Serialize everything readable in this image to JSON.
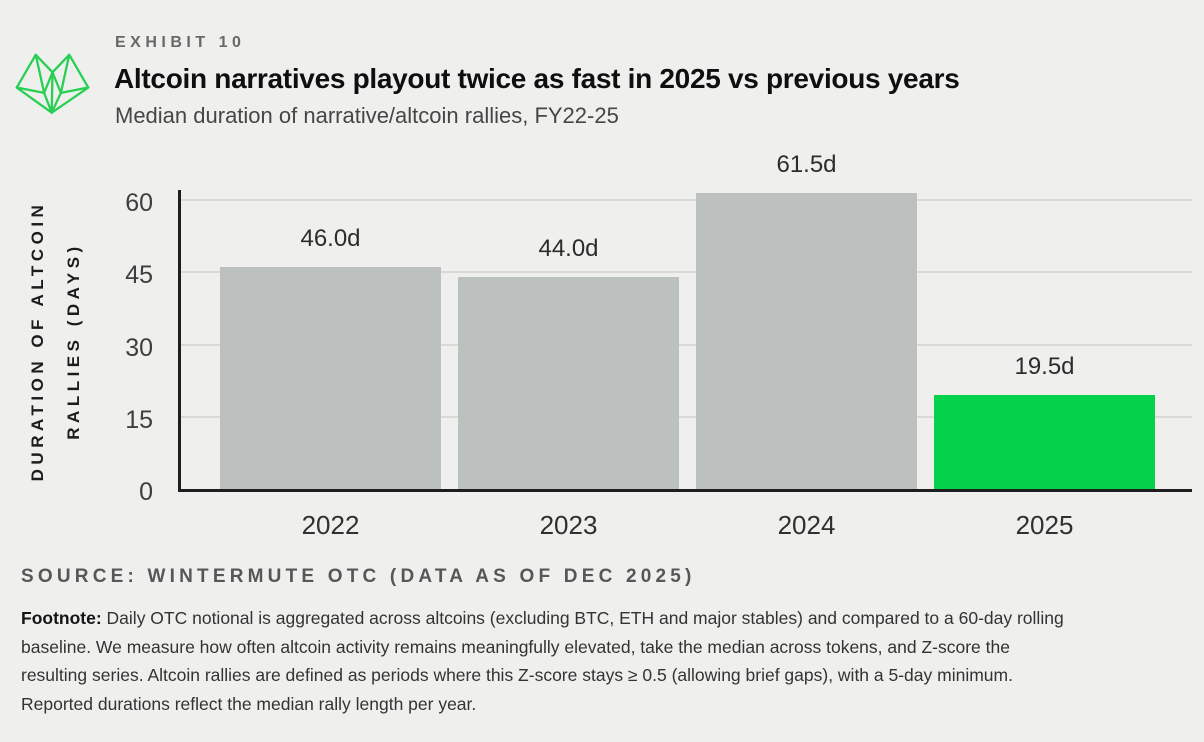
{
  "header": {
    "exhibit_label": "EXHIBIT 10",
    "title": "Altcoin narratives playout twice as fast in 2025 vs previous years",
    "subtitle": "Median duration of narrative/altcoin rallies, FY22-25"
  },
  "chart_data": {
    "type": "bar",
    "categories": [
      "2022",
      "2023",
      "2024",
      "2025"
    ],
    "values": [
      46.0,
      44.0,
      61.5,
      19.5
    ],
    "value_labels": [
      "46.0d",
      "44.0d",
      "61.5d",
      "19.5d"
    ],
    "series_unit": "days",
    "title": "Altcoin narratives playout twice as fast in 2025 vs previous years",
    "xlabel": "",
    "ylabel_lines": [
      "DURATION OF ALTCOIN",
      "RALLIES (DAYS)"
    ],
    "yticks": [
      0,
      15,
      30,
      45,
      60
    ],
    "ytick_labels": [
      "0",
      "15",
      "30",
      "45",
      "60"
    ],
    "ylim": [
      0,
      62.7
    ],
    "grid": true,
    "legend": "none",
    "bar_colors": [
      "#bcc1bf",
      "#bcc1bf",
      "#bcc1bf",
      "#04d24b"
    ]
  },
  "source": "SOURCE: WINTERMUTE OTC (DATA AS OF DEC 2025)",
  "footnote": {
    "label": "Footnote:",
    "lines": [
      "Daily OTC notional is aggregated across altcoins (excluding BTC, ETH and major stables) and compared to a 60-day rolling",
      "baseline. We measure how often altcoin activity remains meaningfully elevated, take the median across tokens, and Z-score the",
      "resulting series. Altcoin rallies are defined as periods where this Z-score stays ≥ 0.5 (allowing brief gaps), with a 5-day minimum.",
      "Reported durations reflect the median rally length per year."
    ]
  },
  "colors": {
    "background": "#efefed",
    "bar_gray": "#bcc1bf",
    "accent_green": "#04d24b",
    "logo_green": "#27d053",
    "axis": "#1e1e1e",
    "gridline": "#d9d9d6"
  },
  "icons": {
    "logo": "wintermute-logo"
  }
}
